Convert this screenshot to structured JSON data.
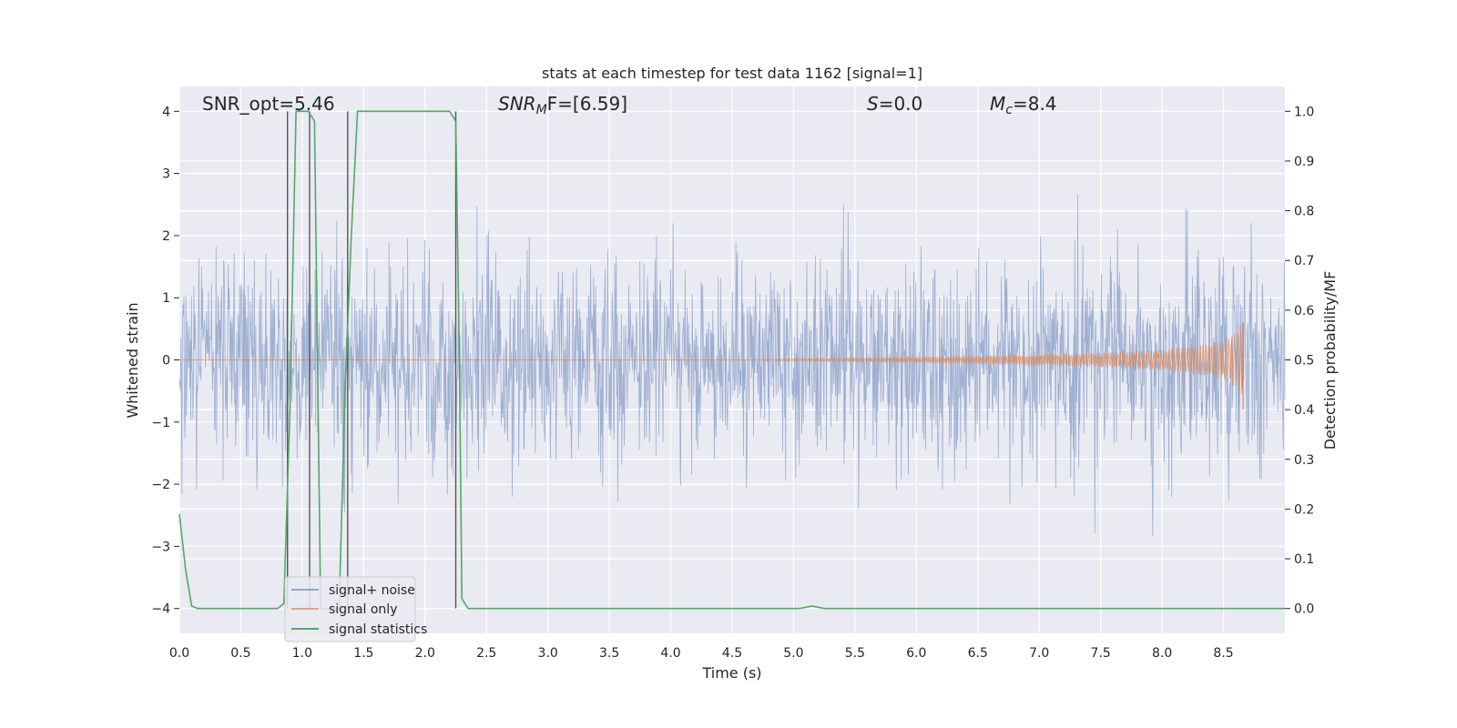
{
  "chart_data": {
    "type": "line",
    "title": "stats at each timestep for test data 1162 [signal=1]",
    "xlabel": "Time (s)",
    "ylabel_left": "Whitened strain",
    "ylabel_right": "Detection probability/MF",
    "xlim": [
      0,
      9
    ],
    "ylim_left": [
      -4.4,
      4.4
    ],
    "ylim_right": [
      -0.05,
      1.05
    ],
    "grid": true,
    "legend_placement": "lower-left",
    "x_ticks": [
      "0.0",
      "0.5",
      "1.0",
      "1.5",
      "2.0",
      "2.5",
      "3.0",
      "3.5",
      "4.0",
      "4.5",
      "5.0",
      "5.5",
      "6.0",
      "6.5",
      "7.0",
      "7.5",
      "8.0",
      "8.5"
    ],
    "y_ticks_left": [
      "4",
      "3",
      "2",
      "1",
      "0",
      "−1",
      "−2",
      "−3",
      "−4"
    ],
    "y_ticks_right": [
      "1.0",
      "0.9",
      "0.8",
      "0.7",
      "0.6",
      "0.5",
      "0.4",
      "0.3",
      "0.2",
      "0.1",
      "0.0"
    ],
    "annotations": {
      "snr_opt": "SNR_opt=5.46",
      "snr_mf_main": "SNR",
      "snr_mf_sub": "M",
      "snr_mf_rest": "F=[6.59]",
      "s_main": "S",
      "s_rest": "=0.0",
      "mc_main": "M",
      "mc_sub": "c",
      "mc_rest": "=8.4"
    },
    "series": [
      {
        "name": "signal+ noise",
        "color": "#8fa4cc",
        "axis": "left",
        "description_values": {
          "noise_sigma": 0.8,
          "t_start": 0,
          "t_end": 9
        }
      },
      {
        "name": "signal only",
        "color": "#dd8452",
        "axis": "left",
        "envelope": {
          "t": [
            4.5,
            5.0,
            6.0,
            7.0,
            7.5,
            8.0,
            8.3,
            8.5,
            8.6,
            8.65
          ],
          "amp": [
            0.0,
            0.02,
            0.05,
            0.09,
            0.12,
            0.17,
            0.23,
            0.32,
            0.45,
            0.6
          ]
        },
        "end_time": 8.66
      },
      {
        "name": "signal statistics",
        "color": "#55a868",
        "axis": "right",
        "x": [
          0.0,
          0.05,
          0.1,
          0.15,
          0.8,
          0.85,
          0.9,
          0.95,
          1.05,
          1.1,
          1.15,
          1.3,
          1.35,
          1.4,
          1.45,
          2.2,
          2.25,
          2.28,
          2.3,
          2.35,
          5.05,
          5.15,
          5.25,
          9.0
        ],
        "y": [
          0.19,
          0.08,
          0.005,
          0.0,
          0.0,
          0.01,
          0.4,
          1.0,
          1.0,
          0.98,
          0.0,
          0.0,
          0.45,
          0.75,
          1.0,
          1.0,
          0.98,
          0.5,
          0.02,
          0.0,
          0.0,
          0.005,
          0.0,
          0.0
        ]
      }
    ],
    "vertical_lines": {
      "color": "#555555",
      "x": [
        0.88,
        1.06,
        1.37,
        2.25
      ]
    }
  }
}
